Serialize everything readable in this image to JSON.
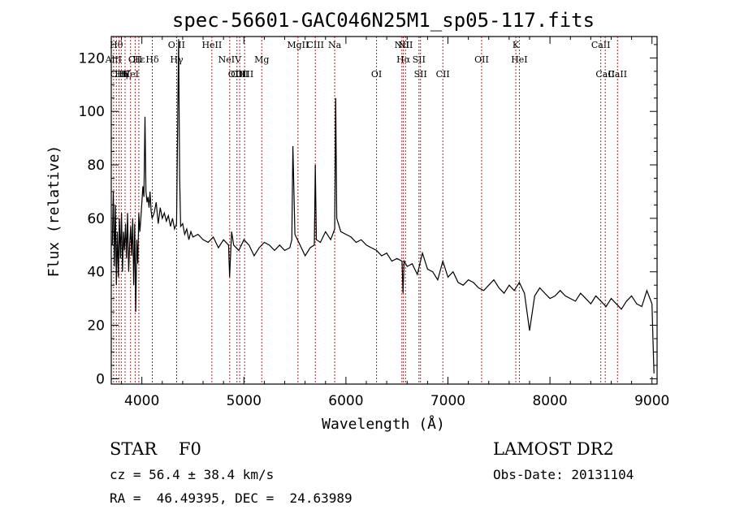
{
  "chart_data": {
    "type": "line",
    "title": "spec-56601-GAC046N25M1_sp05-117.fits",
    "xlabel": "Wavelength (Å)",
    "ylabel": "Flux (relative)",
    "xlim": [
      3700,
      9050
    ],
    "ylim": [
      -2,
      128
    ],
    "xticks": [
      4000,
      5000,
      6000,
      7000,
      8000,
      9000
    ],
    "yticks": [
      0,
      20,
      40,
      60,
      80,
      100,
      120
    ],
    "grid": false,
    "line_color": "#000000",
    "marker_color": "#b22222",
    "series": [
      {
        "x": [
          3710,
          3720,
          3730,
          3740,
          3750,
          3760,
          3770,
          3780,
          3790,
          3800,
          3810,
          3820,
          3830,
          3840,
          3850,
          3860,
          3870,
          3880,
          3890,
          3900,
          3910,
          3920,
          3930,
          3940,
          3950,
          3960,
          3970,
          3980,
          3990,
          4000,
          4010,
          4020,
          4030,
          4040,
          4050,
          4060,
          4070,
          4080,
          4090,
          4100,
          4120,
          4140,
          4160,
          4180,
          4200,
          4220,
          4240,
          4260,
          4280,
          4300,
          4320,
          4340,
          4360,
          4370,
          4380,
          4400,
          4420,
          4440,
          4460,
          4480,
          4500,
          4550,
          4600,
          4650,
          4700,
          4750,
          4800,
          4850,
          4860,
          4870,
          4880,
          4900,
          4950,
          5000,
          5050,
          5100,
          5150,
          5200,
          5250,
          5300,
          5350,
          5400,
          5450,
          5470,
          5480,
          5500,
          5550,
          5600,
          5650,
          5690,
          5700,
          5710,
          5750,
          5800,
          5850,
          5890,
          5900,
          5910,
          5950,
          6000,
          6050,
          6100,
          6150,
          6200,
          6250,
          6300,
          6350,
          6400,
          6450,
          6500,
          6550,
          6560,
          6570,
          6600,
          6650,
          6700,
          6750,
          6800,
          6850,
          6900,
          6950,
          7000,
          7050,
          7100,
          7150,
          7200,
          7250,
          7300,
          7350,
          7400,
          7450,
          7500,
          7550,
          7600,
          7650,
          7700,
          7750,
          7800,
          7850,
          7900,
          7950,
          8000,
          8050,
          8100,
          8150,
          8200,
          8250,
          8300,
          8350,
          8400,
          8450,
          8500,
          8550,
          8600,
          8650,
          8700,
          8750,
          8800,
          8850,
          8900,
          8950,
          8980,
          9000,
          9010,
          9020
        ],
        "y": [
          50,
          70,
          42,
          65,
          35,
          55,
          38,
          60,
          45,
          62,
          40,
          55,
          48,
          58,
          45,
          62,
          40,
          50,
          57,
          46,
          60,
          35,
          58,
          25,
          52,
          43,
          62,
          55,
          60,
          66,
          72,
          68,
          98,
          70,
          66,
          68,
          64,
          70,
          63,
          60,
          62,
          66,
          58,
          64,
          60,
          62,
          59,
          61,
          57,
          60,
          56,
          58,
          127,
          75,
          57,
          58,
          54,
          56,
          52,
          55,
          53,
          54,
          52,
          51,
          53,
          49,
          52,
          50,
          38,
          47,
          55,
          50,
          48,
          52,
          50,
          46,
          49,
          51,
          50,
          48,
          50,
          48,
          49,
          52,
          87,
          54,
          50,
          46,
          49,
          50,
          80,
          52,
          51,
          55,
          52,
          56,
          105,
          60,
          55,
          54,
          53,
          51,
          52,
          50,
          49,
          48,
          46,
          47,
          44,
          45,
          44,
          32,
          44,
          42,
          43,
          39,
          47,
          41,
          40,
          37,
          44,
          38,
          40,
          36,
          35,
          37,
          36,
          34,
          33,
          35,
          37,
          34,
          32,
          35,
          33,
          36,
          32,
          18,
          31,
          34,
          32,
          30,
          31,
          33,
          31,
          30,
          29,
          32,
          30,
          28,
          31,
          29,
          27,
          30,
          28,
          26,
          29,
          31,
          28,
          27,
          33,
          30,
          28,
          14,
          2
        ]
      }
    ],
    "line_markers": [
      {
        "x": 3723,
        "label": "AlII",
        "row": 1
      },
      {
        "x": 3750,
        "label": "Hθ",
        "row": 0
      },
      {
        "x": 3775,
        "label": "CIII",
        "row": 2
      },
      {
        "x": 3798,
        "label": "Hη",
        "row": 2
      },
      {
        "x": 3835,
        "label": "Hζ",
        "row": 2
      },
      {
        "x": 3889,
        "label": "HeI",
        "row": 2
      },
      {
        "x": 3934,
        "label": "CII",
        "row": 1
      },
      {
        "x": 3970,
        "label": "Hε",
        "row": 1
      },
      {
        "x": 4102,
        "label": "Hδ",
        "row": 1
      },
      {
        "x": 4340,
        "label": "O II",
        "row": 0
      },
      {
        "x": 4341,
        "label": "Hγ",
        "row": 1
      },
      {
        "x": 4686,
        "label": "HeII",
        "row": 0
      },
      {
        "x": 4861,
        "label": "NeIV",
        "row": 1
      },
      {
        "x": 4932,
        "label": "OIII",
        "row": 2
      },
      {
        "x": 4959,
        "label": "OIII",
        "row": 2
      },
      {
        "x": 5007,
        "label": "OIII",
        "row": 2
      },
      {
        "x": 5175,
        "label": "Mg",
        "row": 1
      },
      {
        "x": 5530,
        "label": "MgII",
        "row": 0
      },
      {
        "x": 5700,
        "label": "CIII",
        "row": 0
      },
      {
        "x": 5890,
        "label": "Na",
        "row": 0
      },
      {
        "x": 6300,
        "label": "OI",
        "row": 2
      },
      {
        "x": 6548,
        "label": "NII",
        "row": 0
      },
      {
        "x": 6563,
        "label": "Hα",
        "row": 1
      },
      {
        "x": 6584,
        "label": "NII",
        "row": 0
      },
      {
        "x": 6716,
        "label": "SII",
        "row": 1
      },
      {
        "x": 6731,
        "label": "SII",
        "row": 2
      },
      {
        "x": 6950,
        "label": "CII",
        "row": 2
      },
      {
        "x": 7330,
        "label": "OII",
        "row": 1
      },
      {
        "x": 7665,
        "label": "K",
        "row": 0
      },
      {
        "x": 7700,
        "label": "HeI",
        "row": 1
      },
      {
        "x": 8498,
        "label": "CaII",
        "row": 0
      },
      {
        "x": 8542,
        "label": "CaII",
        "row": 2
      },
      {
        "x": 8662,
        "label": "CaII",
        "row": 2
      }
    ]
  },
  "info": {
    "class_line": "STAR    F0",
    "survey": "LAMOST DR2",
    "cz_line": "cz = 56.4 ± 38.4 km/s",
    "obs_date": "Obs-Date: 20131104",
    "radec_line": "RA =  46.49395, DEC =  24.63989"
  }
}
